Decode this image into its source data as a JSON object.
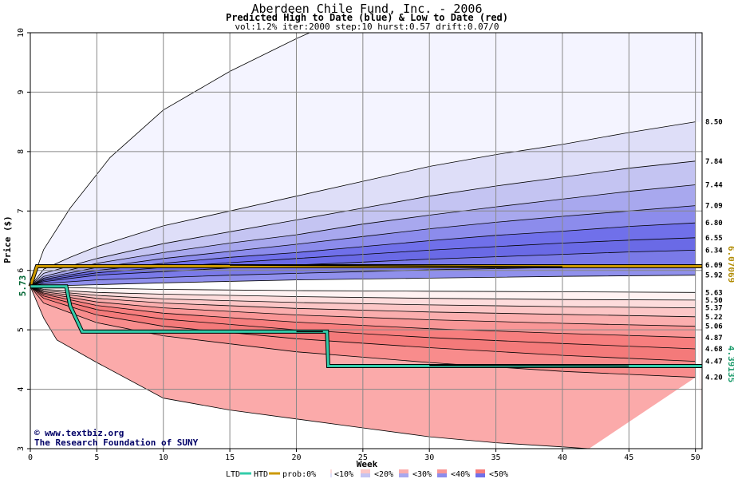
{
  "chart_data": {
    "type": "area",
    "title": "Aberdeen Chile Fund, Inc. - 2006",
    "subtitle": "Predicted High to Date (blue) &  Low to Date (red)",
    "params": "vol:1.2% iter:2000 step:10 hurst:0.57 drift:0.07/0",
    "xlabel": "Week",
    "ylabel": "Price ($)",
    "xlim": [
      0,
      50.5
    ],
    "ylim": [
      3,
      10
    ],
    "x_ticks": [
      "0",
      "5",
      "10",
      "15",
      "20",
      "25",
      "30",
      "35",
      "40",
      "45",
      "50"
    ],
    "y_ticks": [
      "3",
      "4",
      "5",
      "6",
      "7",
      "8",
      "9",
      "10"
    ],
    "grid": true,
    "start_price": 5.73,
    "start_label": "5.73",
    "reference_lines": [
      {
        "name": "HTD",
        "value": 6.07069,
        "label": "6.07069",
        "color": "#b08a00"
      },
      {
        "name": "LTD",
        "value": 4.39135,
        "label": "4.39135",
        "color": "#1a9a6a"
      }
    ],
    "high_bands": [
      {
        "end": 8.5,
        "label": "8.50",
        "pts": [
          [
            0,
            5.73
          ],
          [
            1,
            6.35
          ],
          [
            3,
            7.05
          ],
          [
            6,
            7.9
          ],
          [
            10,
            8.7
          ],
          [
            15,
            9.35
          ],
          [
            20,
            9.9
          ],
          [
            21,
            10.0
          ]
        ]
      },
      {
        "end": 7.84,
        "label": "7.84",
        "pts": [
          [
            0,
            5.73
          ],
          [
            1,
            6.02
          ],
          [
            3,
            6.22
          ],
          [
            5,
            6.4
          ],
          [
            10,
            6.75
          ],
          [
            15,
            7.0
          ],
          [
            20,
            7.25
          ],
          [
            25,
            7.5
          ],
          [
            30,
            7.75
          ],
          [
            35,
            7.95
          ],
          [
            40,
            8.12
          ],
          [
            45,
            8.32
          ],
          [
            50,
            8.5
          ]
        ]
      },
      {
        "end": 7.44,
        "label": "7.44",
        "pts": [
          [
            0,
            5.73
          ],
          [
            1,
            5.95
          ],
          [
            5,
            6.2
          ],
          [
            10,
            6.45
          ],
          [
            15,
            6.65
          ],
          [
            20,
            6.85
          ],
          [
            25,
            7.05
          ],
          [
            30,
            7.25
          ],
          [
            35,
            7.42
          ],
          [
            40,
            7.57
          ],
          [
            45,
            7.72
          ],
          [
            50,
            7.84
          ]
        ]
      },
      {
        "end": 7.09,
        "label": "7.09",
        "pts": [
          [
            0,
            5.73
          ],
          [
            1,
            5.9
          ],
          [
            5,
            6.12
          ],
          [
            10,
            6.3
          ],
          [
            15,
            6.46
          ],
          [
            20,
            6.6
          ],
          [
            25,
            6.78
          ],
          [
            30,
            6.93
          ],
          [
            35,
            7.07
          ],
          [
            40,
            7.2
          ],
          [
            45,
            7.33
          ],
          [
            50,
            7.44
          ]
        ]
      },
      {
        "end": 6.8,
        "label": "6.80",
        "pts": [
          [
            0,
            5.73
          ],
          [
            1,
            5.87
          ],
          [
            5,
            6.05
          ],
          [
            10,
            6.2
          ],
          [
            15,
            6.32
          ],
          [
            20,
            6.44
          ],
          [
            25,
            6.57
          ],
          [
            30,
            6.7
          ],
          [
            35,
            6.81
          ],
          [
            40,
            6.91
          ],
          [
            45,
            7.0
          ],
          [
            50,
            7.09
          ]
        ]
      },
      {
        "end": 6.55,
        "label": "6.55",
        "pts": [
          [
            0,
            5.73
          ],
          [
            1,
            5.85
          ],
          [
            5,
            6.0
          ],
          [
            10,
            6.12
          ],
          [
            15,
            6.22
          ],
          [
            20,
            6.3
          ],
          [
            25,
            6.4
          ],
          [
            30,
            6.5
          ],
          [
            35,
            6.59
          ],
          [
            40,
            6.66
          ],
          [
            45,
            6.74
          ],
          [
            50,
            6.8
          ]
        ]
      },
      {
        "end": 6.34,
        "label": "6.34",
        "pts": [
          [
            0,
            5.73
          ],
          [
            1,
            5.83
          ],
          [
            5,
            5.96
          ],
          [
            10,
            6.05
          ],
          [
            15,
            6.13
          ],
          [
            20,
            6.2
          ],
          [
            25,
            6.27
          ],
          [
            30,
            6.34
          ],
          [
            35,
            6.4
          ],
          [
            40,
            6.46
          ],
          [
            45,
            6.51
          ],
          [
            50,
            6.55
          ]
        ]
      },
      {
        "end": 6.09,
        "label": "6.09",
        "pts": [
          [
            0,
            5.73
          ],
          [
            1,
            5.81
          ],
          [
            5,
            5.92
          ],
          [
            10,
            5.98
          ],
          [
            15,
            6.04
          ],
          [
            20,
            6.09
          ],
          [
            25,
            6.14
          ],
          [
            30,
            6.19
          ],
          [
            35,
            6.23
          ],
          [
            40,
            6.27
          ],
          [
            45,
            6.31
          ],
          [
            50,
            6.34
          ]
        ]
      },
      {
        "end": 5.92,
        "label": "5.92",
        "pts": [
          [
            0,
            5.73
          ],
          [
            1,
            5.78
          ],
          [
            5,
            5.84
          ],
          [
            10,
            5.88
          ],
          [
            15,
            5.92
          ],
          [
            20,
            5.95
          ],
          [
            25,
            5.98
          ],
          [
            30,
            6.01
          ],
          [
            35,
            6.03
          ],
          [
            40,
            6.05
          ],
          [
            45,
            6.07
          ],
          [
            50,
            6.09
          ]
        ]
      },
      {
        "end": 5.73,
        "label": "",
        "pts": [
          [
            0,
            5.73
          ],
          [
            5,
            5.76
          ],
          [
            10,
            5.79
          ],
          [
            20,
            5.84
          ],
          [
            30,
            5.87
          ],
          [
            40,
            5.9
          ],
          [
            50,
            5.92
          ]
        ]
      }
    ],
    "low_bands": [
      {
        "end": 5.63,
        "label": "5.63",
        "pts": [
          [
            0,
            5.73
          ],
          [
            5,
            5.7
          ],
          [
            10,
            5.68
          ],
          [
            20,
            5.66
          ],
          [
            30,
            5.65
          ],
          [
            40,
            5.64
          ],
          [
            50,
            5.63
          ]
        ]
      },
      {
        "end": 5.5,
        "label": "5.50",
        "pts": [
          [
            0,
            5.73
          ],
          [
            1,
            5.68
          ],
          [
            5,
            5.63
          ],
          [
            10,
            5.6
          ],
          [
            20,
            5.56
          ],
          [
            30,
            5.53
          ],
          [
            40,
            5.51
          ],
          [
            50,
            5.5
          ]
        ]
      },
      {
        "end": 5.37,
        "label": "5.37",
        "pts": [
          [
            0,
            5.73
          ],
          [
            1,
            5.66
          ],
          [
            5,
            5.58
          ],
          [
            10,
            5.52
          ],
          [
            20,
            5.46
          ],
          [
            30,
            5.42
          ],
          [
            40,
            5.39
          ],
          [
            50,
            5.37
          ]
        ]
      },
      {
        "end": 5.22,
        "label": "5.22",
        "pts": [
          [
            0,
            5.73
          ],
          [
            1,
            5.64
          ],
          [
            5,
            5.53
          ],
          [
            10,
            5.45
          ],
          [
            20,
            5.36
          ],
          [
            30,
            5.3
          ],
          [
            40,
            5.26
          ],
          [
            50,
            5.22
          ]
        ]
      },
      {
        "end": 5.06,
        "label": "5.06",
        "pts": [
          [
            0,
            5.73
          ],
          [
            1,
            5.62
          ],
          [
            5,
            5.47
          ],
          [
            10,
            5.37
          ],
          [
            20,
            5.25
          ],
          [
            30,
            5.17
          ],
          [
            40,
            5.11
          ],
          [
            50,
            5.06
          ]
        ]
      },
      {
        "end": 4.87,
        "label": "4.87",
        "pts": [
          [
            0,
            5.73
          ],
          [
            1,
            5.6
          ],
          [
            5,
            5.41
          ],
          [
            10,
            5.28
          ],
          [
            20,
            5.13
          ],
          [
            30,
            5.02
          ],
          [
            40,
            4.94
          ],
          [
            50,
            4.87
          ]
        ]
      },
      {
        "end": 4.68,
        "label": "4.68",
        "pts": [
          [
            0,
            5.73
          ],
          [
            1,
            5.57
          ],
          [
            5,
            5.34
          ],
          [
            10,
            5.18
          ],
          [
            20,
            5.0
          ],
          [
            30,
            4.87
          ],
          [
            40,
            4.77
          ],
          [
            50,
            4.68
          ]
        ]
      },
      {
        "end": 4.47,
        "label": "4.47",
        "pts": [
          [
            0,
            5.73
          ],
          [
            1,
            5.53
          ],
          [
            5,
            5.25
          ],
          [
            10,
            5.06
          ],
          [
            20,
            4.85
          ],
          [
            30,
            4.7
          ],
          [
            40,
            4.57
          ],
          [
            50,
            4.47
          ]
        ]
      },
      {
        "end": 4.2,
        "label": "4.20",
        "pts": [
          [
            0,
            5.73
          ],
          [
            1,
            5.45
          ],
          [
            5,
            5.12
          ],
          [
            10,
            4.9
          ],
          [
            20,
            4.63
          ],
          [
            30,
            4.45
          ],
          [
            40,
            4.3
          ],
          [
            50,
            4.2
          ]
        ]
      },
      {
        "end": 3.0,
        "label": "",
        "pts": [
          [
            0,
            5.73
          ],
          [
            1,
            5.2
          ],
          [
            2,
            4.83
          ],
          [
            5,
            4.45
          ],
          [
            10,
            3.85
          ],
          [
            15,
            3.65
          ],
          [
            20,
            3.5
          ],
          [
            25,
            3.35
          ],
          [
            30,
            3.2
          ],
          [
            35,
            3.1
          ],
          [
            40,
            3.03
          ],
          [
            42,
            3.0
          ]
        ]
      }
    ],
    "htd_line": {
      "name": "HTD",
      "color": "#cc9900",
      "pts": [
        [
          0,
          5.73
        ],
        [
          0.5,
          6.07
        ],
        [
          50.5,
          6.07
        ]
      ]
    },
    "ltd_line": {
      "name": "LTD",
      "color": "#33ccaa",
      "pts": [
        [
          0,
          5.73
        ],
        [
          2.7,
          5.73
        ],
        [
          3,
          5.4
        ],
        [
          3.9,
          4.97
        ],
        [
          22.3,
          4.97
        ],
        [
          22.4,
          4.39
        ],
        [
          50.5,
          4.39
        ]
      ]
    },
    "dark_segments": [
      {
        "pts": [
          [
            15,
            6.09
          ],
          [
            40,
            6.06
          ]
        ]
      },
      {
        "pts": [
          [
            20,
            4.97
          ],
          [
            22,
            4.97
          ]
        ]
      },
      {
        "pts": [
          [
            30,
            4.4
          ],
          [
            45,
            4.39
          ]
        ]
      }
    ]
  },
  "credits": {
    "site": "www.textbiz.org",
    "org": "The Research Foundation of SUNY"
  },
  "legend": {
    "ltd": "LTD",
    "htd": "HTD",
    "items": [
      "prob:0%",
      "<10%",
      "<20%",
      "<30%",
      "<40%",
      "<50%"
    ],
    "colors": {
      "ltd": "#33ccaa",
      "htd": "#cc9900",
      "blue": [
        "#f4f4ff",
        "#dedef8",
        "#c4c4f2",
        "#a8a8ee",
        "#8c8cec",
        "#7070ea"
      ],
      "red": [
        "#fff2f2",
        "#fddcdc",
        "#fcc6c6",
        "#fbaeae",
        "#f99696",
        "#f77e7e"
      ]
    }
  }
}
